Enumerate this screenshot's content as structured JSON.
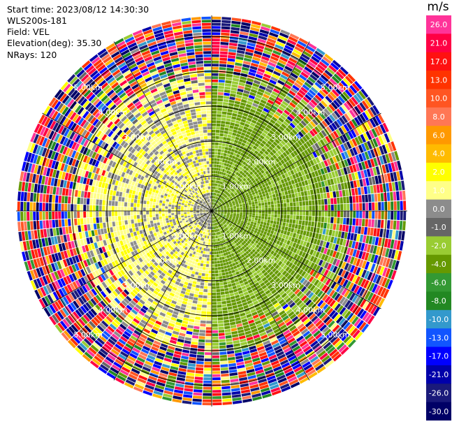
{
  "info": {
    "start_time": "Start time: 2023/08/12 14:30:30",
    "instrument": "WLS200s-181",
    "field": "Field: VEL",
    "elevation": "Elevation(deg): 35.30",
    "nrays": "NRays: 120"
  },
  "colorbar": {
    "title": "m/s",
    "bins": [
      {
        "label": "26.0",
        "color": "#ff3399"
      },
      {
        "label": "21.0",
        "color": "#ff0044"
      },
      {
        "label": "17.0",
        "color": "#ff1111"
      },
      {
        "label": "13.0",
        "color": "#ff3300"
      },
      {
        "label": "10.0",
        "color": "#ff5522"
      },
      {
        "label": "8.0",
        "color": "#ff7755"
      },
      {
        "label": "6.0",
        "color": "#ff9900"
      },
      {
        "label": "4.0",
        "color": "#ffbb00"
      },
      {
        "label": "2.0",
        "color": "#ffff00"
      },
      {
        "label": "1.0",
        "color": "#ffff88"
      },
      {
        "label": "0.0",
        "color": "#8c8c8c"
      },
      {
        "label": "-1.0",
        "color": "#666666"
      },
      {
        "label": "-2.0",
        "color": "#99cc33"
      },
      {
        "label": "-4.0",
        "color": "#669900"
      },
      {
        "label": "-6.0",
        "color": "#339933"
      },
      {
        "label": "-8.0",
        "color": "#228822"
      },
      {
        "label": "-10.0",
        "color": "#3399cc"
      },
      {
        "label": "-13.0",
        "color": "#1155ff"
      },
      {
        "label": "-17.0",
        "color": "#0000ff"
      },
      {
        "label": "-21.0",
        "color": "#0000aa"
      },
      {
        "label": "-26.0",
        "color": "#1a1a7a"
      },
      {
        "label": "-30.0",
        "color": "#000066"
      }
    ]
  },
  "range_labels": [
    "1.00km",
    "2.00km",
    "3.00km",
    "4.00km",
    "5.00km"
  ],
  "chart_data": {
    "type": "heatmap",
    "projection": "polar PPI (azimuth vs range)",
    "field": "VEL",
    "units": "m/s",
    "n_rays": 120,
    "range_rings_km": [
      1,
      2,
      3,
      4,
      5
    ],
    "max_range_km": 5.6,
    "azimuth_spokes_deg": [
      0,
      30,
      60,
      90,
      120,
      150,
      180,
      210,
      240,
      270,
      300,
      330
    ],
    "velocity_pattern": [
      {
        "range_km": [
          0,
          0.5
        ],
        "west_half": 0.5,
        "east_half": -3.0,
        "note": "near-field green/grey"
      },
      {
        "range_km": [
          0.5,
          3.2
        ],
        "west_half": 1.5,
        "east_half": -2.5
      },
      {
        "range_km": [
          3.2,
          4.0
        ],
        "west_half": 1.5,
        "east_half": -2.0,
        "noisy": 0.35
      },
      {
        "range_km": [
          4.0,
          5.6
        ],
        "noisy": 1.0,
        "note": "random velocities, beyond signal"
      }
    ]
  }
}
